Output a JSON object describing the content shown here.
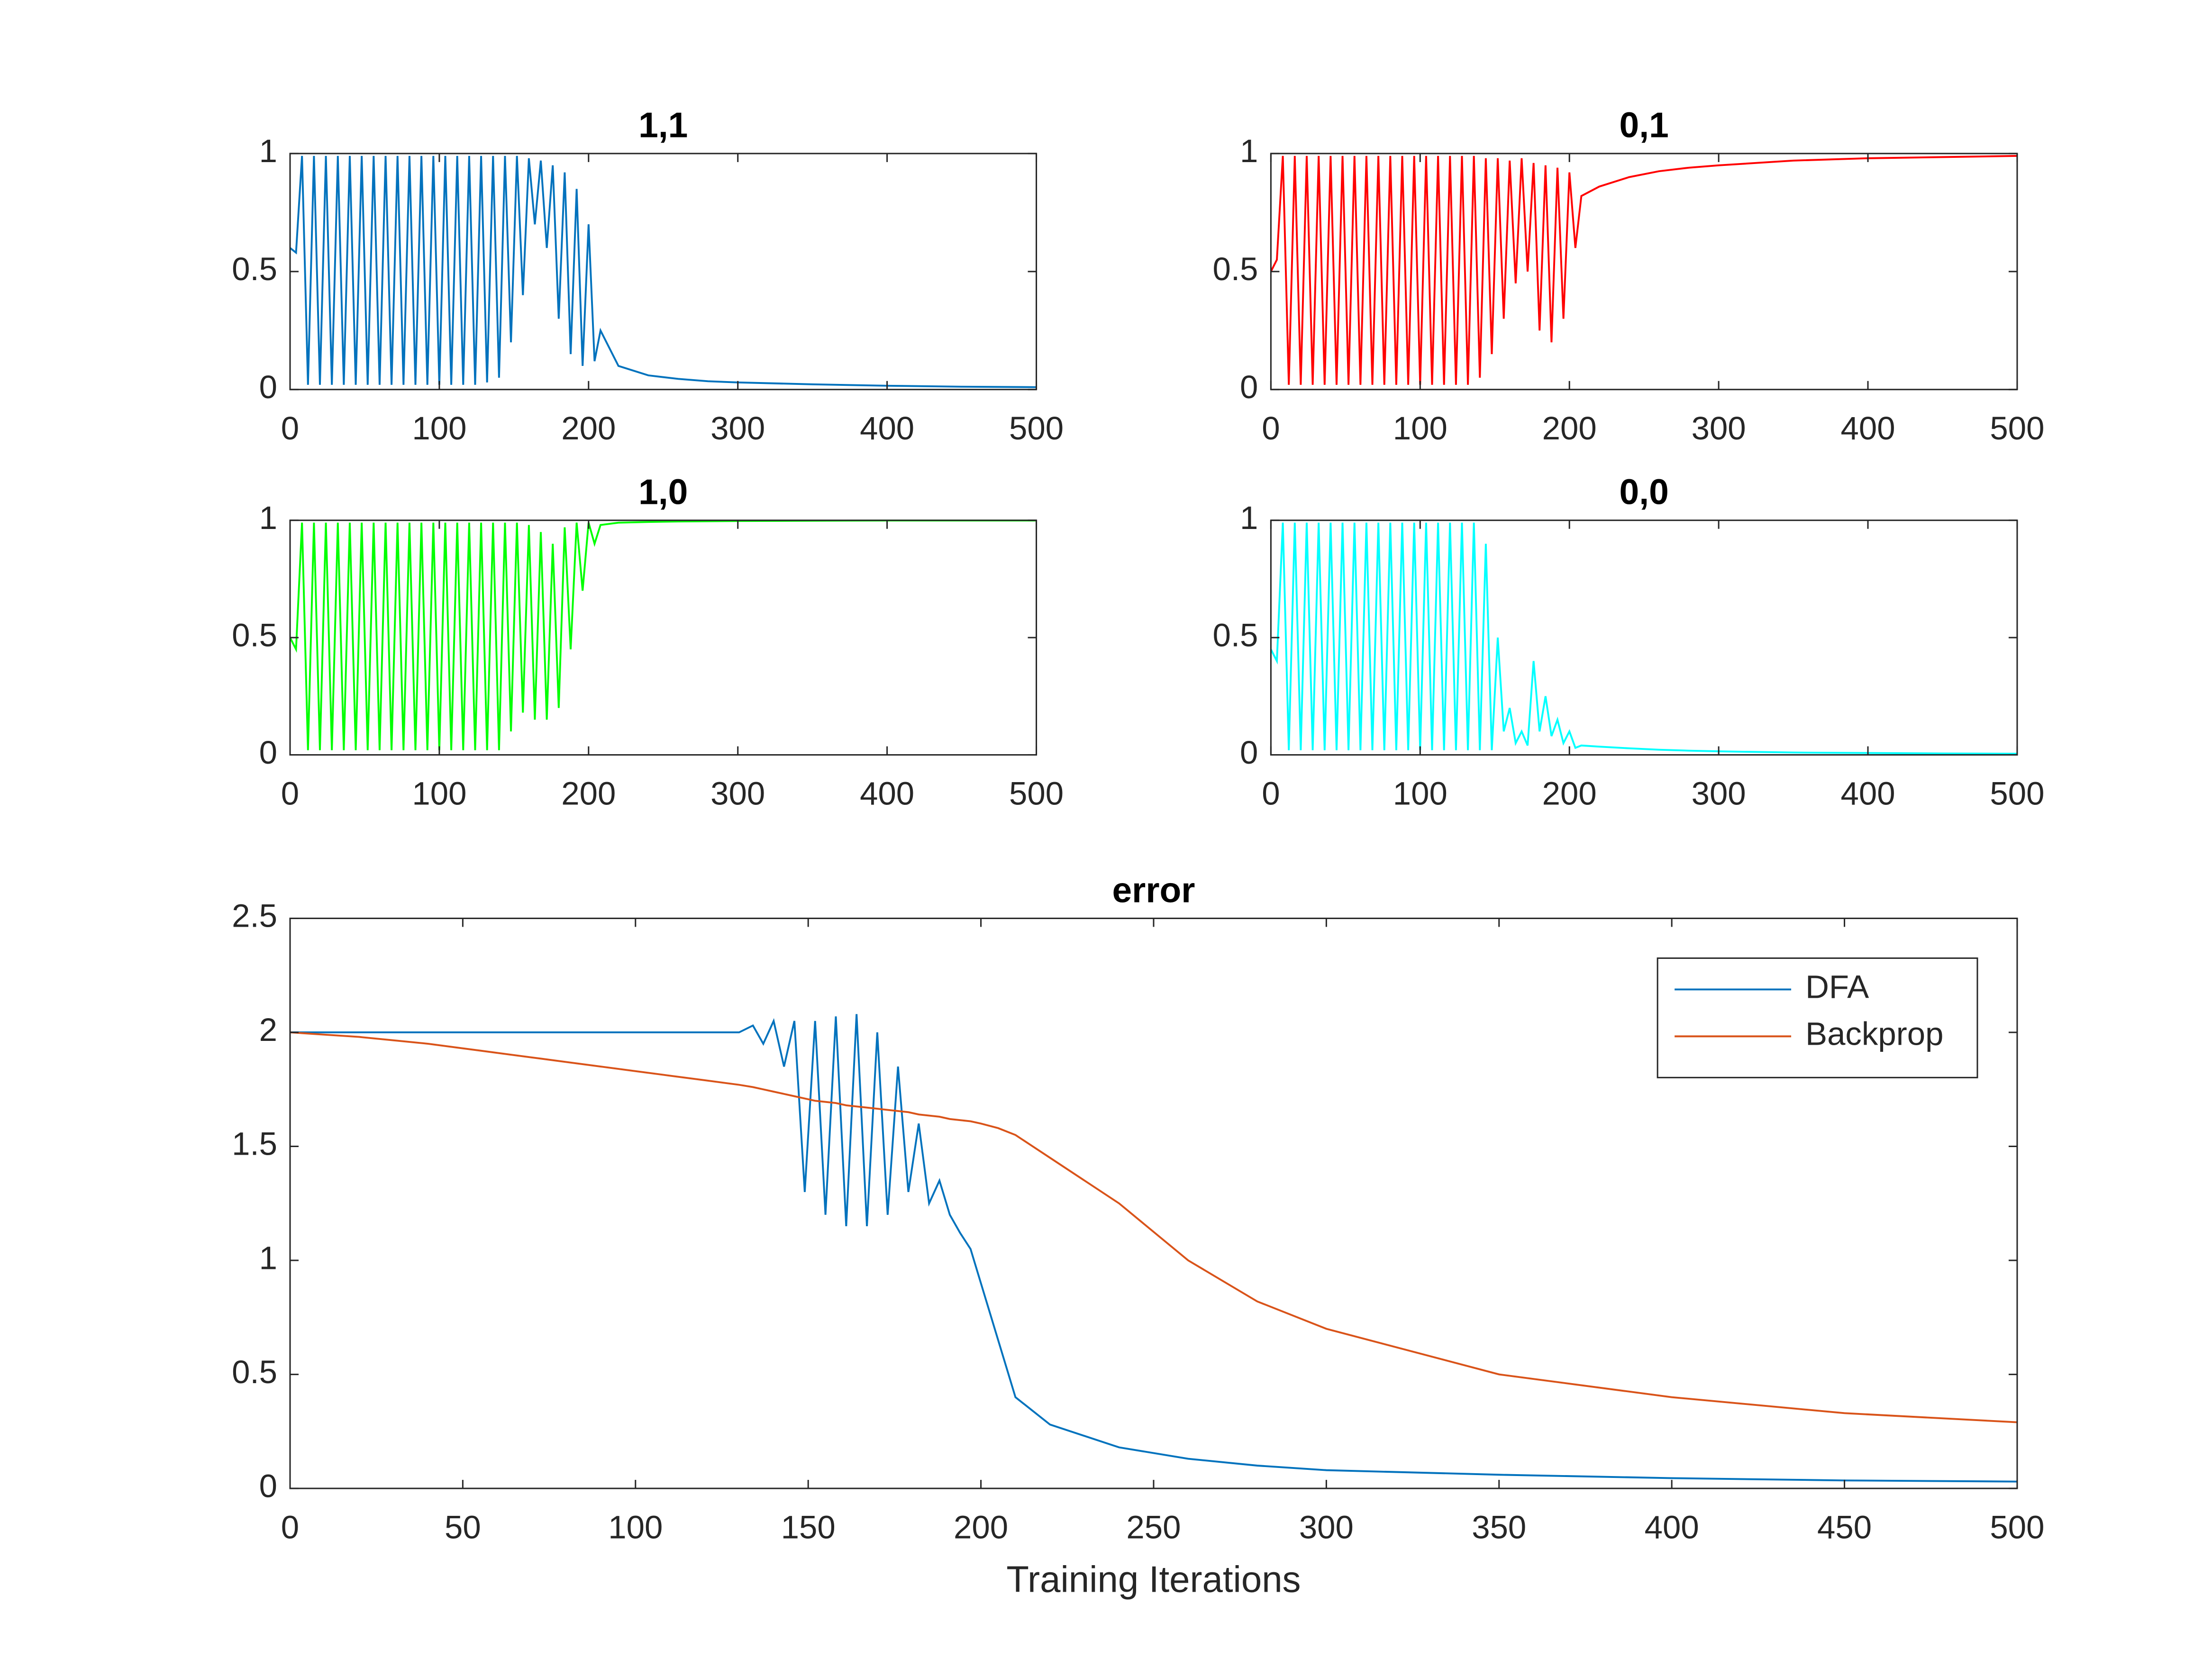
{
  "chart_data": [
    {
      "type": "line",
      "title": "1,1",
      "x": [
        0,
        4,
        8,
        12,
        16,
        20,
        24,
        28,
        32,
        36,
        40,
        44,
        48,
        52,
        56,
        60,
        64,
        68,
        72,
        76,
        80,
        84,
        88,
        92,
        96,
        100,
        104,
        108,
        112,
        116,
        120,
        124,
        128,
        132,
        136,
        140,
        144,
        148,
        152,
        156,
        160,
        164,
        168,
        172,
        176,
        180,
        184,
        188,
        192,
        196,
        200,
        204,
        208,
        220,
        240,
        260,
        280,
        300,
        350,
        400,
        450,
        500
      ],
      "series": [
        {
          "color": "#0072bd",
          "values": [
            0.6,
            0.58,
            0.99,
            0.02,
            0.99,
            0.02,
            0.99,
            0.02,
            0.99,
            0.02,
            0.99,
            0.02,
            0.99,
            0.02,
            0.99,
            0.02,
            0.99,
            0.02,
            0.99,
            0.02,
            0.99,
            0.02,
            0.99,
            0.02,
            0.99,
            0.02,
            0.99,
            0.02,
            0.99,
            0.02,
            0.99,
            0.02,
            0.99,
            0.03,
            0.99,
            0.05,
            0.99,
            0.2,
            0.99,
            0.4,
            0.98,
            0.7,
            0.97,
            0.6,
            0.95,
            0.3,
            0.92,
            0.15,
            0.85,
            0.1,
            0.7,
            0.12,
            0.25,
            0.1,
            0.06,
            0.045,
            0.035,
            0.03,
            0.022,
            0.016,
            0.012,
            0.01
          ]
        }
      ],
      "xlim": [
        0,
        500
      ],
      "xticks": [
        0,
        100,
        200,
        300,
        400,
        500
      ],
      "ylim": [
        0,
        1
      ],
      "yticks": [
        0,
        0.5,
        1
      ]
    },
    {
      "type": "line",
      "title": "0,1",
      "x": [
        0,
        4,
        8,
        12,
        16,
        20,
        24,
        28,
        32,
        36,
        40,
        44,
        48,
        52,
        56,
        60,
        64,
        68,
        72,
        76,
        80,
        84,
        88,
        92,
        96,
        100,
        104,
        108,
        112,
        116,
        120,
        124,
        128,
        132,
        136,
        140,
        144,
        148,
        152,
        156,
        160,
        164,
        168,
        172,
        176,
        180,
        184,
        188,
        192,
        196,
        200,
        204,
        208,
        220,
        240,
        260,
        280,
        300,
        350,
        400,
        450,
        500
      ],
      "series": [
        {
          "color": "#ff0000",
          "values": [
            0.5,
            0.55,
            0.99,
            0.02,
            0.99,
            0.02,
            0.99,
            0.02,
            0.99,
            0.02,
            0.99,
            0.02,
            0.99,
            0.02,
            0.99,
            0.02,
            0.99,
            0.02,
            0.99,
            0.02,
            0.99,
            0.02,
            0.99,
            0.02,
            0.99,
            0.02,
            0.99,
            0.02,
            0.99,
            0.02,
            0.99,
            0.02,
            0.99,
            0.02,
            0.99,
            0.05,
            0.98,
            0.15,
            0.98,
            0.3,
            0.97,
            0.45,
            0.98,
            0.5,
            0.96,
            0.25,
            0.95,
            0.2,
            0.94,
            0.3,
            0.92,
            0.6,
            0.82,
            0.86,
            0.9,
            0.925,
            0.94,
            0.95,
            0.97,
            0.98,
            0.985,
            0.99
          ]
        }
      ],
      "xlim": [
        0,
        500
      ],
      "xticks": [
        0,
        100,
        200,
        300,
        400,
        500
      ],
      "ylim": [
        0,
        1
      ],
      "yticks": [
        0,
        0.5,
        1
      ]
    },
    {
      "type": "line",
      "title": "1,0",
      "x": [
        0,
        4,
        8,
        12,
        16,
        20,
        24,
        28,
        32,
        36,
        40,
        44,
        48,
        52,
        56,
        60,
        64,
        68,
        72,
        76,
        80,
        84,
        88,
        92,
        96,
        100,
        104,
        108,
        112,
        116,
        120,
        124,
        128,
        132,
        136,
        140,
        144,
        148,
        152,
        156,
        160,
        164,
        168,
        172,
        176,
        180,
        184,
        188,
        192,
        196,
        200,
        204,
        208,
        220,
        240,
        260,
        280,
        300,
        350,
        400,
        450,
        500
      ],
      "series": [
        {
          "color": "#00ff00",
          "values": [
            0.5,
            0.45,
            0.99,
            0.02,
            0.99,
            0.02,
            0.99,
            0.02,
            0.99,
            0.02,
            0.99,
            0.02,
            0.99,
            0.02,
            0.99,
            0.02,
            0.99,
            0.02,
            0.99,
            0.02,
            0.99,
            0.02,
            0.99,
            0.02,
            0.99,
            0.02,
            0.99,
            0.02,
            0.99,
            0.02,
            0.99,
            0.02,
            0.99,
            0.02,
            0.99,
            0.02,
            0.99,
            0.1,
            0.99,
            0.18,
            0.98,
            0.15,
            0.95,
            0.15,
            0.9,
            0.2,
            0.97,
            0.45,
            0.99,
            0.7,
            0.99,
            0.9,
            0.98,
            0.99,
            0.993,
            0.995,
            0.996,
            0.997,
            0.998,
            0.999,
            0.999,
            0.999
          ]
        }
      ],
      "xlim": [
        0,
        500
      ],
      "xticks": [
        0,
        100,
        200,
        300,
        400,
        500
      ],
      "ylim": [
        0,
        1
      ],
      "yticks": [
        0,
        0.5,
        1
      ]
    },
    {
      "type": "line",
      "title": "0,0",
      "x": [
        0,
        4,
        8,
        12,
        16,
        20,
        24,
        28,
        32,
        36,
        40,
        44,
        48,
        52,
        56,
        60,
        64,
        68,
        72,
        76,
        80,
        84,
        88,
        92,
        96,
        100,
        104,
        108,
        112,
        116,
        120,
        124,
        128,
        132,
        136,
        140,
        144,
        148,
        152,
        156,
        160,
        164,
        168,
        172,
        176,
        180,
        184,
        188,
        192,
        196,
        200,
        204,
        208,
        220,
        240,
        260,
        280,
        300,
        350,
        400,
        450,
        500
      ],
      "series": [
        {
          "color": "#00ffff",
          "values": [
            0.45,
            0.4,
            0.99,
            0.02,
            0.99,
            0.02,
            0.99,
            0.02,
            0.99,
            0.02,
            0.99,
            0.02,
            0.99,
            0.02,
            0.99,
            0.02,
            0.99,
            0.02,
            0.99,
            0.02,
            0.99,
            0.02,
            0.99,
            0.02,
            0.99,
            0.02,
            0.99,
            0.02,
            0.99,
            0.02,
            0.99,
            0.02,
            0.99,
            0.02,
            0.99,
            0.02,
            0.9,
            0.02,
            0.5,
            0.1,
            0.2,
            0.05,
            0.1,
            0.04,
            0.4,
            0.1,
            0.25,
            0.08,
            0.15,
            0.05,
            0.1,
            0.03,
            0.04,
            0.035,
            0.028,
            0.022,
            0.018,
            0.015,
            0.01,
            0.008,
            0.006,
            0.005
          ]
        }
      ],
      "xlim": [
        0,
        500
      ],
      "xticks": [
        0,
        100,
        200,
        300,
        400,
        500
      ],
      "ylim": [
        0,
        1
      ],
      "yticks": [
        0,
        0.5,
        1
      ]
    },
    {
      "type": "line",
      "title": "error",
      "x_label": "Training Iterations",
      "legend": "upper right",
      "x": [
        0,
        10,
        20,
        30,
        40,
        50,
        60,
        70,
        80,
        90,
        100,
        110,
        120,
        130,
        134,
        137,
        140,
        143,
        146,
        149,
        152,
        155,
        158,
        161,
        164,
        167,
        170,
        173,
        176,
        179,
        182,
        185,
        188,
        191,
        194,
        197,
        200,
        205,
        210,
        220,
        240,
        260,
        280,
        300,
        350,
        400,
        450,
        500
      ],
      "series": [
        {
          "name": "DFA",
          "color": "#0072bd",
          "values": [
            2.0,
            2.0,
            2.0,
            2.0,
            2.0,
            2.0,
            2.0,
            2.0,
            2.0,
            2.0,
            2.0,
            2.0,
            2.0,
            2.0,
            2.03,
            1.95,
            2.05,
            1.85,
            2.05,
            1.3,
            2.05,
            1.2,
            2.07,
            1.15,
            2.08,
            1.15,
            2.0,
            1.2,
            1.85,
            1.3,
            1.6,
            1.25,
            1.35,
            1.2,
            1.12,
            1.05,
            0.9,
            0.65,
            0.4,
            0.28,
            0.18,
            0.13,
            0.1,
            0.08,
            0.06,
            0.045,
            0.035,
            0.03
          ]
        },
        {
          "name": "Backprop",
          "color": "#d95319",
          "values": [
            2.0,
            1.99,
            1.98,
            1.965,
            1.95,
            1.93,
            1.91,
            1.89,
            1.87,
            1.85,
            1.83,
            1.81,
            1.79,
            1.77,
            1.76,
            1.75,
            1.74,
            1.73,
            1.72,
            1.71,
            1.7,
            1.695,
            1.69,
            1.68,
            1.675,
            1.67,
            1.665,
            1.66,
            1.655,
            1.65,
            1.64,
            1.635,
            1.63,
            1.62,
            1.615,
            1.61,
            1.6,
            1.58,
            1.55,
            1.45,
            1.25,
            1.0,
            0.82,
            0.7,
            0.5,
            0.4,
            0.33,
            0.29
          ]
        }
      ],
      "xlim": [
        0,
        500
      ],
      "xticks": [
        0,
        50,
        100,
        150,
        200,
        250,
        300,
        350,
        400,
        450,
        500
      ],
      "ylim": [
        0,
        2.5
      ],
      "yticks": [
        0,
        0.5,
        1,
        1.5,
        2,
        2.5
      ]
    }
  ]
}
